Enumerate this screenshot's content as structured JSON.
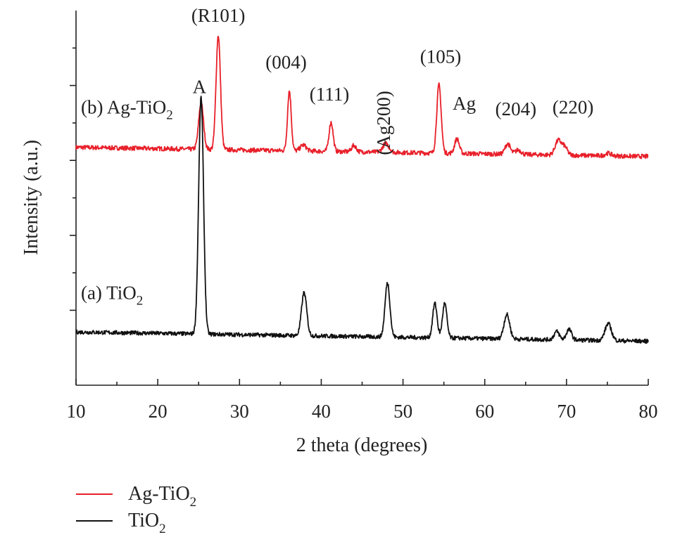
{
  "chart_data": {
    "type": "line",
    "xlabel": "2 theta (degrees)",
    "ylabel": "Intensity (a.u.)",
    "xlim": [
      10,
      80
    ],
    "xticks": [
      10,
      20,
      30,
      40,
      50,
      60,
      70,
      80
    ],
    "ylim": [
      0,
      100
    ],
    "yticks_unlabeled": [
      20,
      40,
      60,
      80
    ],
    "grid": false,
    "legend_position": "bottom-left, below plot",
    "series": [
      {
        "name": "Ag-TiO2",
        "color": "#e8202a",
        "baseline": 63.5,
        "noise": 0.6,
        "peaks": [
          {
            "x": 25.3,
            "h": 12.3,
            "w": 0.42
          },
          {
            "x": 27.4,
            "h": 30.5,
            "w": 0.38
          },
          {
            "x": 36.1,
            "h": 16.0,
            "w": 0.32
          },
          {
            "x": 37.8,
            "h": 1.6,
            "w": 0.5
          },
          {
            "x": 41.2,
            "h": 7.8,
            "w": 0.35
          },
          {
            "x": 44.0,
            "h": 1.7,
            "w": 0.4
          },
          {
            "x": 47.9,
            "h": 2.3,
            "w": 0.55
          },
          {
            "x": 54.4,
            "h": 18.2,
            "w": 0.38
          },
          {
            "x": 56.6,
            "h": 3.9,
            "w": 0.4
          },
          {
            "x": 62.8,
            "h": 2.8,
            "w": 0.45
          },
          {
            "x": 64.1,
            "h": 1.2,
            "w": 0.5
          },
          {
            "x": 69.0,
            "h": 3.9,
            "w": 0.55
          },
          {
            "x": 69.8,
            "h": 2.0,
            "w": 0.45
          },
          {
            "x": 75.1,
            "h": 0.7,
            "w": 0.5
          }
        ]
      },
      {
        "name": "TiO2",
        "color": "#111111",
        "baseline": 14.2,
        "noise": 0.55,
        "peaks": [
          {
            "x": 25.3,
            "h": 63.2,
            "w": 0.42
          },
          {
            "x": 37.9,
            "h": 11.5,
            "w": 0.45
          },
          {
            "x": 48.1,
            "h": 14.5,
            "w": 0.42
          },
          {
            "x": 53.9,
            "h": 9.2,
            "w": 0.38
          },
          {
            "x": 55.1,
            "h": 9.2,
            "w": 0.38
          },
          {
            "x": 62.7,
            "h": 6.5,
            "w": 0.5
          },
          {
            "x": 68.8,
            "h": 2.2,
            "w": 0.45
          },
          {
            "x": 70.3,
            "h": 2.8,
            "w": 0.45
          },
          {
            "x": 75.1,
            "h": 4.5,
            "w": 0.55
          }
        ]
      }
    ],
    "annotations": [
      {
        "text": "(R101)",
        "x": 27.4,
        "y": 97.0,
        "rotate": false
      },
      {
        "text": "A",
        "x": 25.1,
        "y": 78.0,
        "rotate": false
      },
      {
        "text": "(004)",
        "x": 35.7,
        "y": 84.5,
        "rotate": false
      },
      {
        "text": "(111)",
        "x": 41.0,
        "y": 76.0,
        "rotate": false
      },
      {
        "text": "(Ag200)",
        "x": 48.4,
        "y": 70.0,
        "rotate": true
      },
      {
        "text": "(105)",
        "x": 54.6,
        "y": 86.0,
        "rotate": false
      },
      {
        "text": "Ag",
        "x": 57.5,
        "y": 73.5,
        "rotate": false
      },
      {
        "text": "(204)",
        "x": 63.8,
        "y": 72.0,
        "rotate": false
      },
      {
        "text": "(220)",
        "x": 70.8,
        "y": 72.5,
        "rotate": false
      }
    ],
    "curve_labels": [
      {
        "main": "(b) Ag-TiO",
        "sub": "2",
        "x": 10.6,
        "y": 72.5
      },
      {
        "main": "(a) TiO",
        "sub": "2",
        "x": 10.6,
        "y": 23.0
      }
    ]
  },
  "legend": [
    {
      "main": "Ag-TiO",
      "sub": "2",
      "color": "#e8202a"
    },
    {
      "main": "TiO",
      "sub": "2",
      "color": "#111111"
    }
  ]
}
